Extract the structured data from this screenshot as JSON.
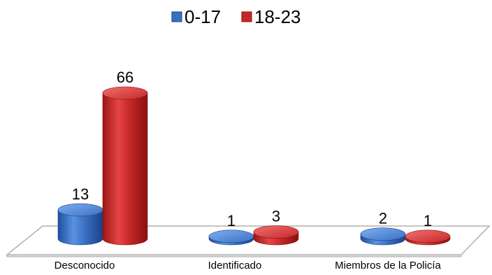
{
  "chart_data": {
    "type": "bar",
    "style": "3d-cylinder",
    "categories": [
      "Desconocido",
      "Identificado",
      "Miembros de la Policía"
    ],
    "series": [
      {
        "name": "0-17",
        "values": [
          13,
          1,
          2
        ],
        "color": "#3a6fc4"
      },
      {
        "name": "18-23",
        "values": [
          66,
          3,
          1
        ],
        "color": "#c62828"
      }
    ],
    "title": "",
    "xlabel": "",
    "ylabel": "",
    "ylim": [
      0,
      70
    ],
    "grid": false,
    "legend": "top-center",
    "data_labels": true
  }
}
